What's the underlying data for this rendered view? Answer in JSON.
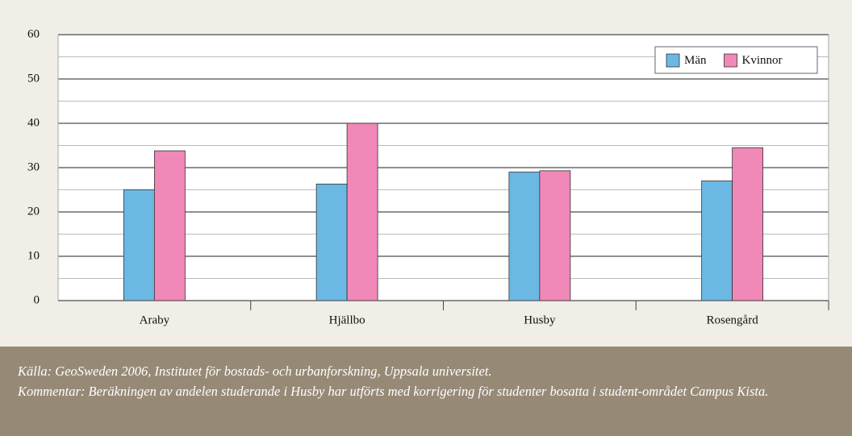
{
  "chart_data": {
    "type": "bar",
    "categories": [
      "Araby",
      "Hjällbo",
      "Husby",
      "Rosengård"
    ],
    "series": [
      {
        "name": "Män",
        "color": "#6cb8e4",
        "values": [
          25,
          26.3,
          29,
          27
        ]
      },
      {
        "name": "Kvinnor",
        "color": "#f088b8",
        "values": [
          33.8,
          40,
          29.3,
          34.5
        ]
      }
    ],
    "ylim": [
      0,
      60
    ],
    "yticks": [
      0,
      10,
      20,
      30,
      40,
      50,
      60
    ],
    "minor_yticks": [
      5,
      15,
      25,
      35,
      45,
      55
    ],
    "grid": true,
    "legend": "upper right"
  },
  "footer": {
    "source": "Källa: GeoSweden 2006, Institutet för bostads- och urbanforskning, Uppsala universitet.",
    "comment": "Kommentar: Beräkningen av andelen studerande i Husby har utförts med korrigering för studenter bosatta i student-området Campus Kista."
  }
}
